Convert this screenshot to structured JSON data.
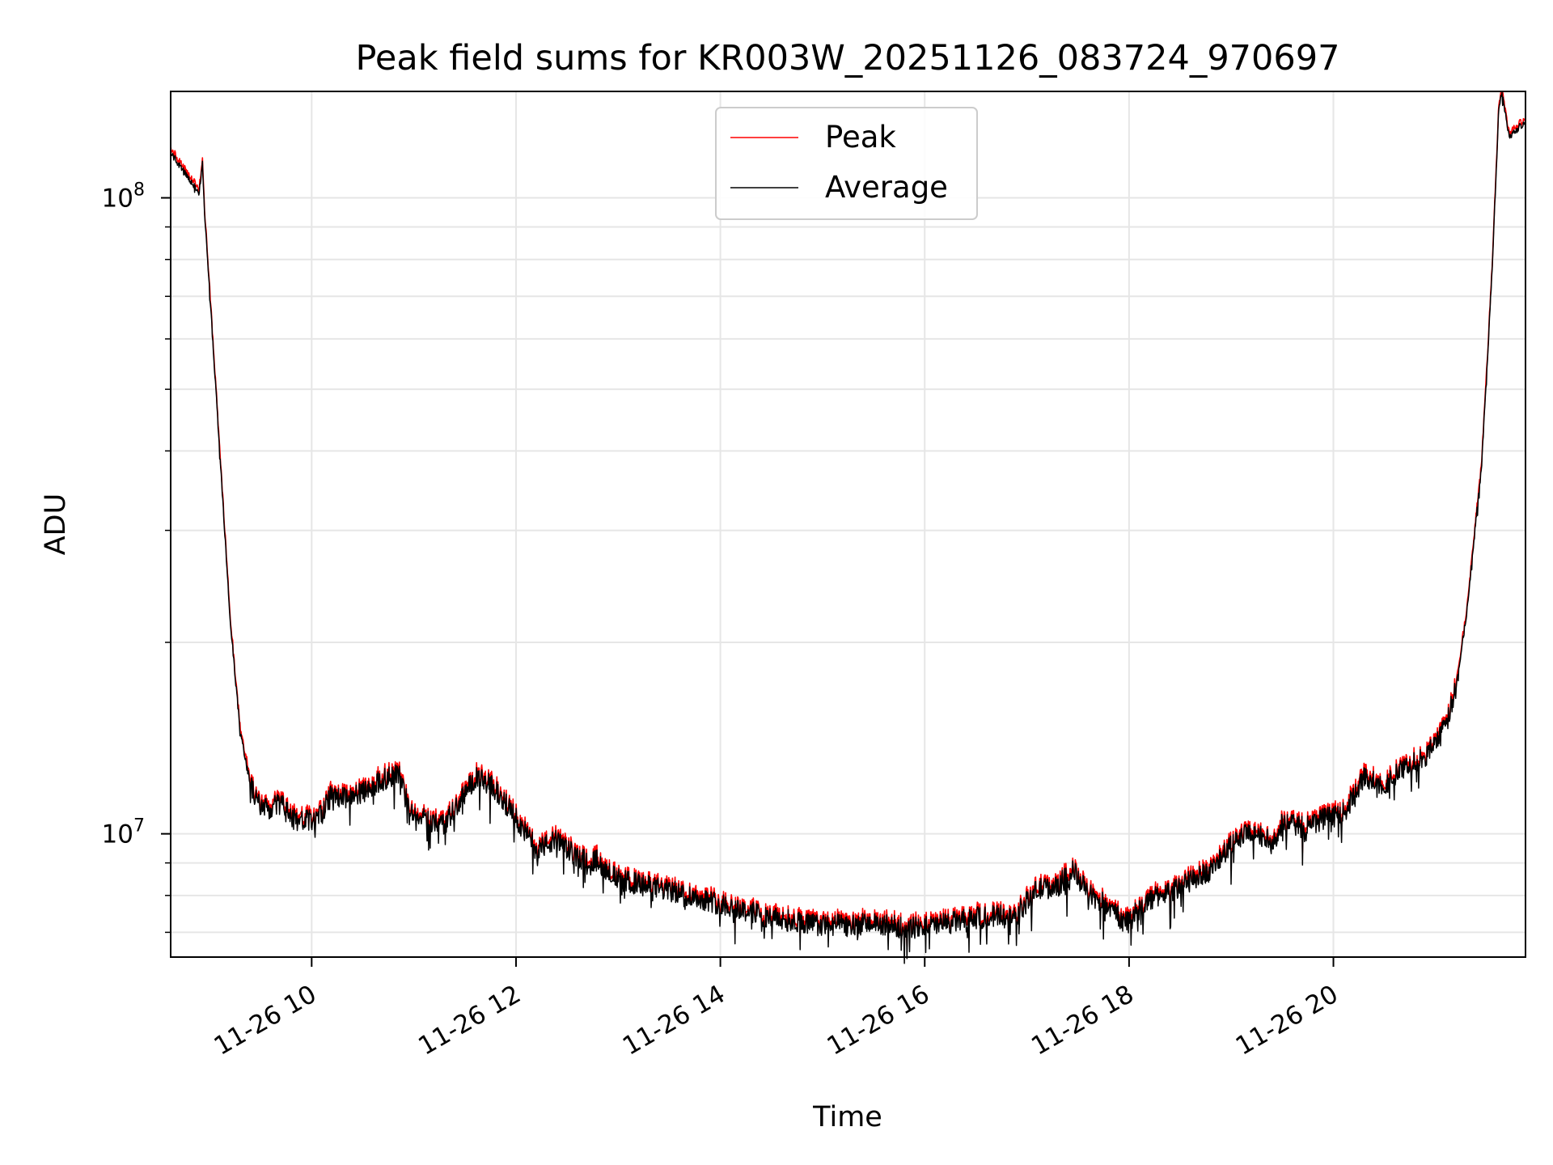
{
  "chart_data": {
    "type": "line",
    "title": "Peak field sums for KR003W_20251126_083724_970697",
    "xlabel": "Time",
    "ylabel": "ADU",
    "y_scale": "log",
    "xlim": [
      8.62,
      21.88
    ],
    "ylim": [
      6400000,
      147000000
    ],
    "grid": true,
    "legend_position": "top-center",
    "x_ticks": [
      {
        "value": 10,
        "label": "11-26 10"
      },
      {
        "value": 12,
        "label": "11-26 12"
      },
      {
        "value": 14,
        "label": "11-26 14"
      },
      {
        "value": 16,
        "label": "11-26 16"
      },
      {
        "value": 18,
        "label": "11-26 18"
      },
      {
        "value": 20,
        "label": "11-26 20"
      }
    ],
    "y_major_ticks": [
      {
        "value": 10000000,
        "base": "10",
        "exp": "7"
      },
      {
        "value": 100000000,
        "base": "10",
        "exp": "8"
      }
    ],
    "y_minor_ticks": [
      7000000,
      8000000,
      9000000,
      20000000,
      30000000,
      40000000,
      50000000,
      60000000,
      70000000,
      80000000,
      90000000
    ],
    "series": [
      {
        "name": "Peak",
        "color": "#ff0000"
      },
      {
        "name": "Average",
        "color": "#000000"
      }
    ],
    "trend": {
      "x": [
        8.62,
        8.78,
        8.9,
        8.93,
        8.95,
        9.0,
        9.1,
        9.2,
        9.3,
        9.4,
        9.5,
        9.6,
        9.7,
        9.8,
        10.0,
        10.1,
        10.2,
        10.3,
        10.5,
        10.7,
        10.85,
        10.95,
        11.1,
        11.3,
        11.5,
        11.6,
        11.75,
        11.9,
        12.0,
        12.2,
        12.4,
        12.6,
        12.8,
        13.0,
        13.3,
        13.6,
        14.0,
        14.5,
        15.0,
        15.5,
        15.8,
        16.0,
        16.5,
        16.9,
        17.1,
        17.3,
        17.45,
        17.6,
        17.8,
        17.95,
        18.2,
        18.5,
        18.8,
        19.0,
        19.2,
        19.4,
        19.5,
        19.7,
        19.9,
        20.1,
        20.3,
        20.5,
        20.7,
        20.9,
        21.1,
        21.2,
        21.3,
        21.45,
        21.55,
        21.62,
        21.65,
        21.72,
        21.88
      ],
      "y": [
        118000000,
        108000000,
        102000000,
        114000000,
        96000000,
        72000000,
        40000000,
        22000000,
        14500000,
        12000000,
        11000000,
        11000000,
        11200000,
        10600000,
        10500000,
        10800000,
        11600000,
        11400000,
        11700000,
        12200000,
        12500000,
        11000000,
        10600000,
        10400000,
        11600000,
        12300000,
        12000000,
        11200000,
        10600000,
        9500000,
        9800000,
        9200000,
        9100000,
        8500000,
        8300000,
        8100000,
        7800000,
        7400000,
        7200000,
        7250000,
        7150000,
        7150000,
        7400000,
        7500000,
        8200000,
        8300000,
        8800000,
        8100000,
        7700000,
        7300000,
        7900000,
        8300000,
        8800000,
        9600000,
        10200000,
        9700000,
        10400000,
        10300000,
        10600000,
        10800000,
        12300000,
        12000000,
        12800000,
        13200000,
        14800000,
        17000000,
        22000000,
        38000000,
        75000000,
        140000000,
        147000000,
        125000000,
        132000000
      ]
    }
  }
}
